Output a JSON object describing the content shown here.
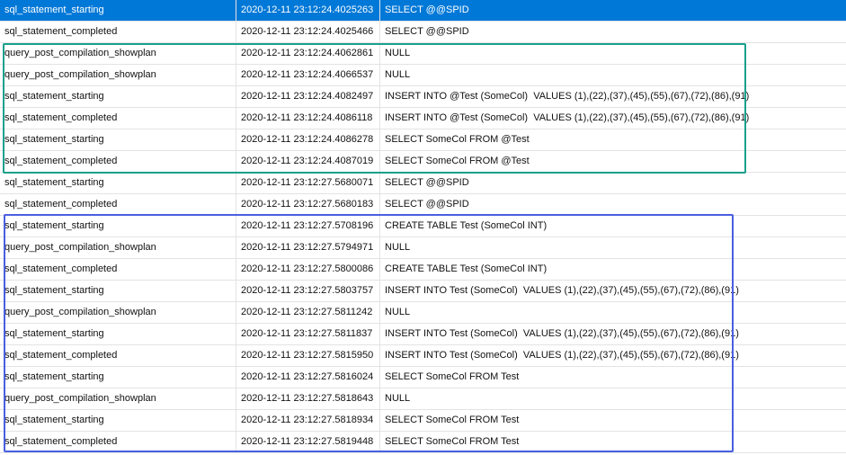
{
  "table": {
    "rows": [
      [
        "sql_statement_starting",
        "2020-12-11 23:12:24.4025263",
        "SELECT @@SPID"
      ],
      [
        "sql_statement_completed",
        "2020-12-11 23:12:24.4025466",
        "SELECT @@SPID"
      ],
      [
        "query_post_compilation_showplan",
        "2020-12-11 23:12:24.4062861",
        "NULL"
      ],
      [
        "query_post_compilation_showplan",
        "2020-12-11 23:12:24.4066537",
        "NULL"
      ],
      [
        "sql_statement_starting",
        "2020-12-11 23:12:24.4082497",
        "INSERT INTO @Test (SomeCol)  VALUES (1),(22),(37),(45),(55),(67),(72),(86),(91)"
      ],
      [
        "sql_statement_completed",
        "2020-12-11 23:12:24.4086118",
        "INSERT INTO @Test (SomeCol)  VALUES (1),(22),(37),(45),(55),(67),(72),(86),(91)"
      ],
      [
        "sql_statement_starting",
        "2020-12-11 23:12:24.4086278",
        "SELECT SomeCol FROM @Test"
      ],
      [
        "sql_statement_completed",
        "2020-12-11 23:12:24.4087019",
        "SELECT SomeCol FROM @Test"
      ],
      [
        "sql_statement_starting",
        "2020-12-11 23:12:27.5680071",
        "SELECT @@SPID"
      ],
      [
        "sql_statement_completed",
        "2020-12-11 23:12:27.5680183",
        "SELECT @@SPID"
      ],
      [
        "sql_statement_starting",
        "2020-12-11 23:12:27.5708196",
        "CREATE TABLE Test (SomeCol INT)"
      ],
      [
        "query_post_compilation_showplan",
        "2020-12-11 23:12:27.5794971",
        "NULL"
      ],
      [
        "sql_statement_completed",
        "2020-12-11 23:12:27.5800086",
        "CREATE TABLE Test (SomeCol INT)"
      ],
      [
        "sql_statement_starting",
        "2020-12-11 23:12:27.5803757",
        "INSERT INTO Test (SomeCol)  VALUES (1),(22),(37),(45),(55),(67),(72),(86),(91)"
      ],
      [
        "query_post_compilation_showplan",
        "2020-12-11 23:12:27.5811242",
        "NULL"
      ],
      [
        "sql_statement_starting",
        "2020-12-11 23:12:27.5811837",
        "INSERT INTO Test (SomeCol)  VALUES (1),(22),(37),(45),(55),(67),(72),(86),(91)"
      ],
      [
        "sql_statement_completed",
        "2020-12-11 23:12:27.5815950",
        "INSERT INTO Test (SomeCol)  VALUES (1),(22),(37),(45),(55),(67),(72),(86),(91)"
      ],
      [
        "sql_statement_starting",
        "2020-12-11 23:12:27.5816024",
        "SELECT SomeCol FROM Test"
      ],
      [
        "query_post_compilation_showplan",
        "2020-12-11 23:12:27.5818643",
        "NULL"
      ],
      [
        "sql_statement_starting",
        "2020-12-11 23:12:27.5818934",
        "SELECT SomeCol FROM Test"
      ],
      [
        "sql_statement_completed",
        "2020-12-11 23:12:27.5819448",
        "SELECT SomeCol FROM Test"
      ]
    ]
  }
}
